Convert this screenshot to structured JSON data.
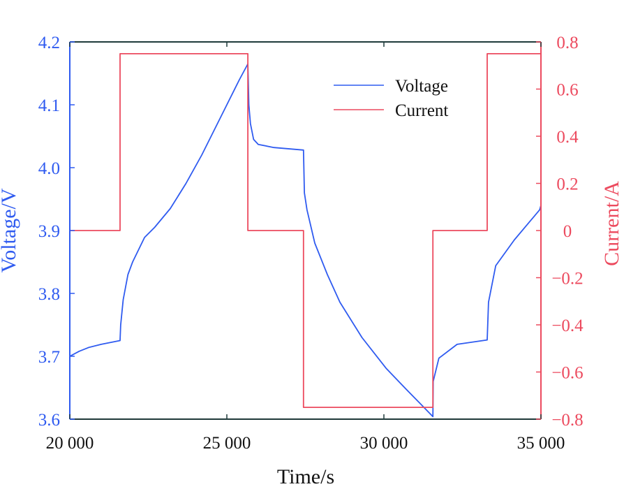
{
  "chart_data": {
    "type": "line",
    "xlabel": "Time/s",
    "ylabel_left": "Voltage/V",
    "ylabel_right": "Current/A",
    "xlim": [
      20000,
      35000
    ],
    "ylim_left": [
      3.6,
      4.2
    ],
    "ylim_right": [
      -0.8,
      0.8
    ],
    "x_ticks": [
      20000,
      25000,
      30000,
      35000
    ],
    "x_tick_labels": [
      "20 000",
      "25 000",
      "30 000",
      "35 000"
    ],
    "y_left_ticks": [
      3.6,
      3.7,
      3.8,
      3.9,
      4.0,
      4.1,
      4.2
    ],
    "y_left_tick_labels": [
      "3.6",
      "3.7",
      "3.8",
      "3.9",
      "4.0",
      "4.1",
      "4.2"
    ],
    "y_right_ticks": [
      -0.8,
      -0.6,
      -0.4,
      -0.2,
      0,
      0.2,
      0.4,
      0.6,
      0.8
    ],
    "y_right_tick_labels": [
      "−0.8",
      "−0.6",
      "−0.4",
      "−0.2",
      "0",
      "0.2",
      "0.4",
      "0.6",
      "0.8"
    ],
    "grid": false,
    "legend_position": "top-right",
    "colors": {
      "voltage": "#2f5bf0",
      "current": "#ec4a5e",
      "frame": "#1f3a3a"
    },
    "series": [
      {
        "name": "Voltage",
        "axis": "left",
        "x": [
          20000,
          20300,
          20600,
          21000,
          21600,
          21620,
          21700,
          21850,
          22000,
          22380,
          22700,
          23200,
          23700,
          24200,
          24700,
          25000,
          25400,
          25670,
          25700,
          25750,
          25850,
          26000,
          26500,
          27440,
          27470,
          27550,
          27800,
          28200,
          28600,
          29300,
          30070,
          30700,
          31270,
          31560,
          31570,
          31750,
          32330,
          33290,
          33330,
          33560,
          34150,
          34960,
          35000
        ],
        "y": [
          3.7,
          3.708,
          3.714,
          3.719,
          3.725,
          3.75,
          3.79,
          3.83,
          3.85,
          3.889,
          3.905,
          3.935,
          3.975,
          4.02,
          4.07,
          4.1,
          4.14,
          4.165,
          4.1,
          4.07,
          4.045,
          4.037,
          4.032,
          4.028,
          3.96,
          3.933,
          3.88,
          3.83,
          3.786,
          3.73,
          3.681,
          3.648,
          3.619,
          3.604,
          3.66,
          3.697,
          3.719,
          3.726,
          3.786,
          3.844,
          3.885,
          3.933,
          3.94
        ]
      },
      {
        "name": "Current",
        "axis": "right",
        "x": [
          20000,
          21600,
          21600,
          25670,
          25670,
          27440,
          27440,
          31560,
          31560,
          33290,
          33290,
          35000
        ],
        "y": [
          0,
          0,
          0.75,
          0.75,
          0,
          0,
          -0.75,
          -0.75,
          0,
          0,
          0.75,
          0.75
        ]
      }
    ]
  }
}
